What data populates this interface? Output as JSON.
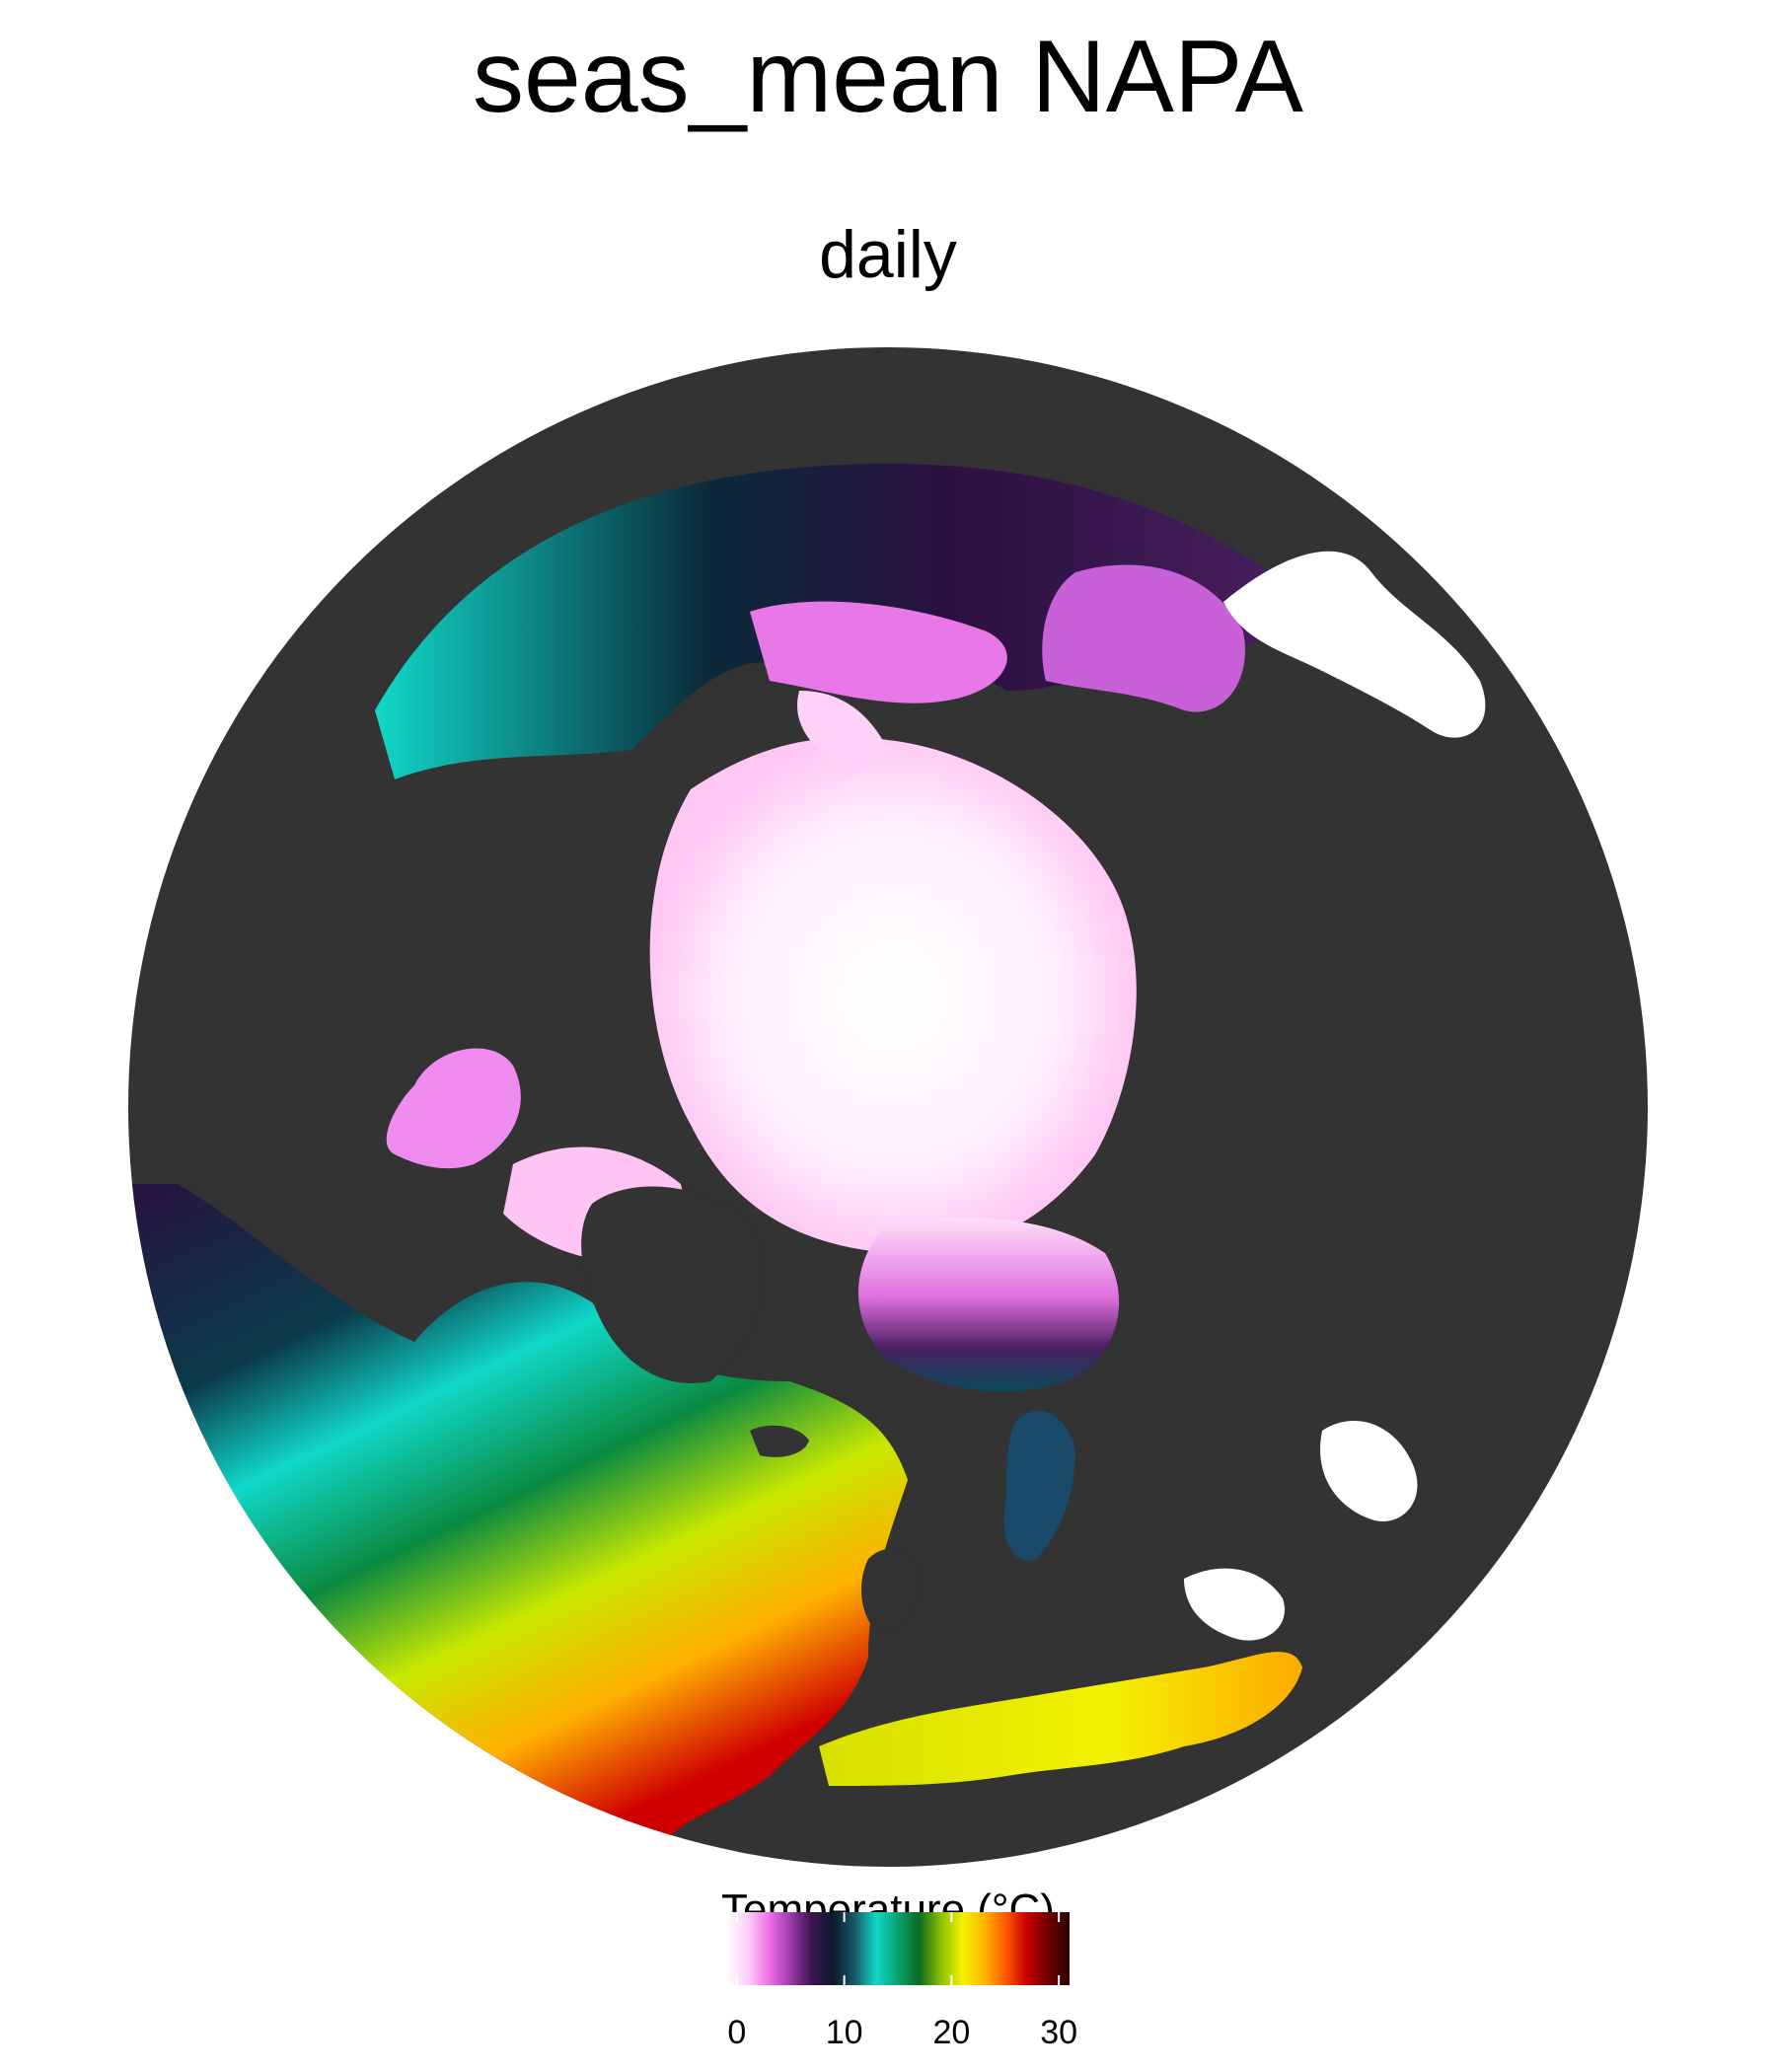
{
  "title": "seas_mean NAPA",
  "subtitle": "daily",
  "map": {
    "projection": "north-polar-stereographic",
    "variable": "sea surface temperature",
    "land_color": "#333333",
    "outside_color": "#ffffff"
  },
  "legend": {
    "title": "Temperature (°C)",
    "range": [
      -1,
      31
    ],
    "ticks": [
      0,
      10,
      20,
      30
    ],
    "tick_labels": [
      "0",
      "10",
      "20",
      "30"
    ],
    "colors": [
      "#ffffff",
      "#ffd0f8",
      "#f070e8",
      "#9a3aa8",
      "#3a1450",
      "#0a1a2a",
      "#1a5a6a",
      "#10d8c8",
      "#0aa070",
      "#0a6a20",
      "#8ac000",
      "#f2f200",
      "#ffb800",
      "#ff5a00",
      "#c80000",
      "#700000",
      "#2a0000"
    ]
  }
}
